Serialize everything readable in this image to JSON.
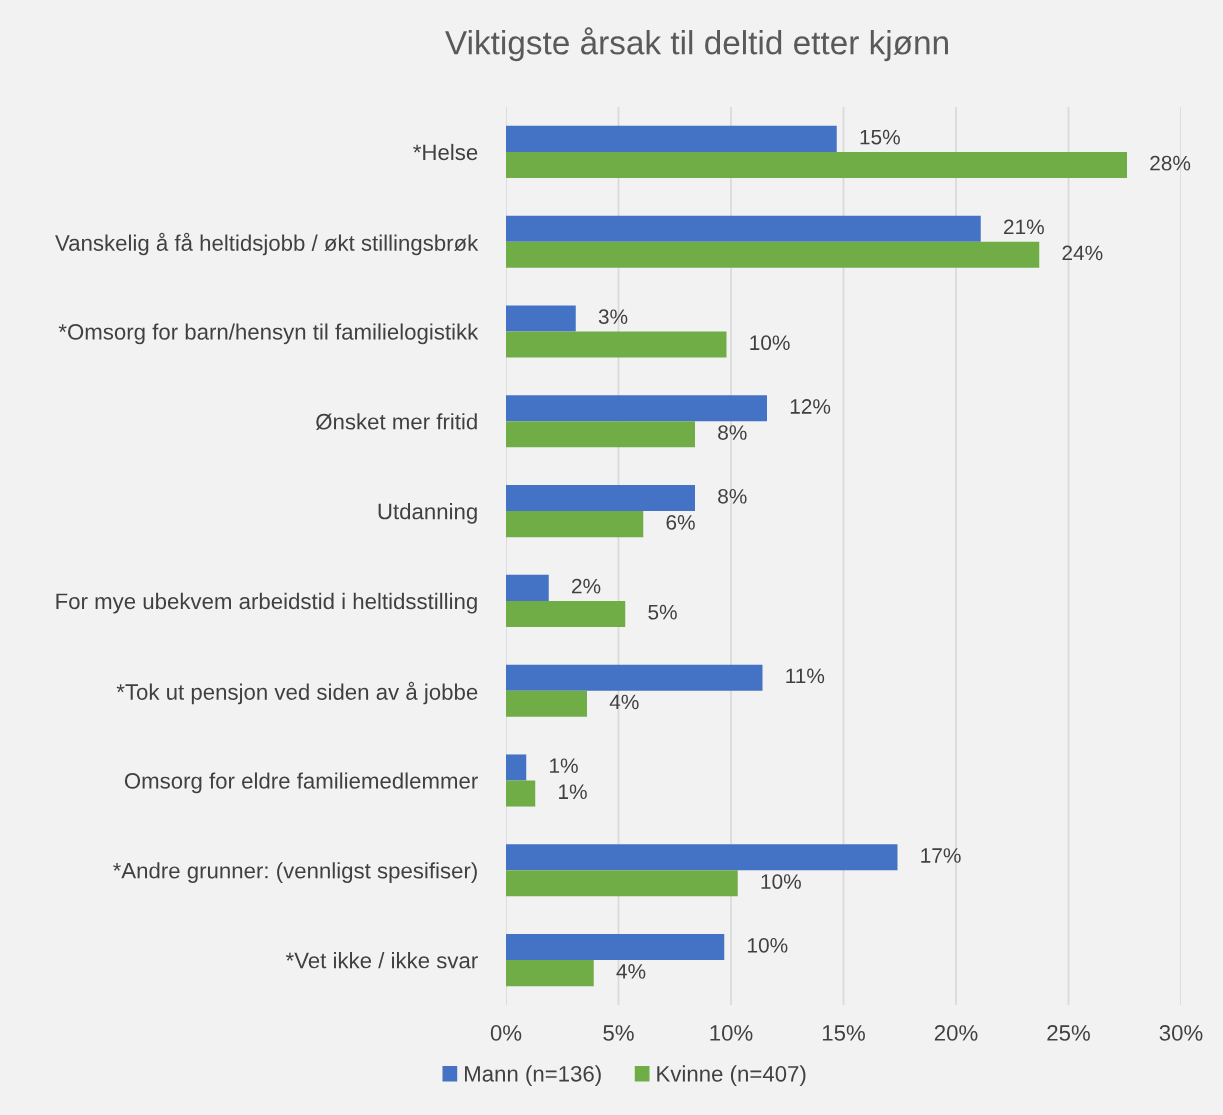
{
  "chart_data": {
    "type": "bar",
    "orientation": "horizontal",
    "title": "Viktigste årsak til deltid etter kjønn",
    "categories": [
      "*Helse",
      "Vanskelig å få heltidsjobb / økt stillingsbrøk",
      "*Omsorg for barn/hensyn til familielogistikk",
      "Ønsket mer fritid",
      "Utdanning",
      "For mye ubekvem arbeidstid i heltidsstilling",
      "*Tok ut pensjon ved siden av å jobbe",
      "Omsorg for eldre familiemedlemmer",
      "*Andre grunner: (vennligst spesifiser)",
      "*Vet ikke / ikke svar"
    ],
    "series": [
      {
        "name": "Mann (n=136)",
        "color": "#4472c4",
        "values": [
          14.7,
          21.1,
          3.1,
          11.6,
          8.4,
          1.9,
          11.4,
          0.9,
          17.4,
          9.7
        ],
        "value_labels": [
          "15%",
          "21%",
          "3%",
          "12%",
          "8%",
          "2%",
          "11%",
          "1%",
          "17%",
          "10%"
        ]
      },
      {
        "name": "Kvinne (n=407)",
        "color": "#70ad47",
        "values": [
          27.6,
          23.7,
          9.8,
          8.4,
          6.1,
          5.3,
          3.6,
          1.3,
          10.3,
          3.9
        ],
        "value_labels": [
          "28%",
          "24%",
          "10%",
          "8%",
          "6%",
          "5%",
          "4%",
          "1%",
          "10%",
          "4%"
        ]
      }
    ],
    "xlim": [
      0,
      30
    ],
    "xticks": [
      {
        "value": 0,
        "label": "0%"
      },
      {
        "value": 5,
        "label": "5%"
      },
      {
        "value": 10,
        "label": "10%"
      },
      {
        "value": 15,
        "label": "15%"
      },
      {
        "value": 20,
        "label": "20%"
      },
      {
        "value": 25,
        "label": "25%"
      },
      {
        "value": 30,
        "label": "30%"
      }
    ],
    "grid": "x",
    "legend": "bottom"
  }
}
